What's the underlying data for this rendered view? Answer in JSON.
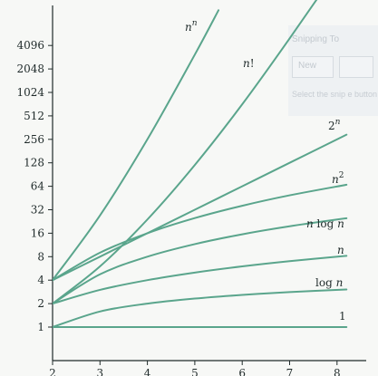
{
  "chart_data": {
    "type": "line",
    "title": "",
    "xlabel": "",
    "ylabel": "",
    "y_scale": "log2",
    "xlim": [
      2,
      8.2
    ],
    "ylim": [
      0.5,
      11000
    ],
    "x_ticks": [
      2,
      3,
      4,
      5,
      6,
      7,
      8
    ],
    "y_ticks": [
      1,
      2,
      4,
      8,
      16,
      32,
      64,
      128,
      256,
      512,
      1024,
      2048,
      4096
    ],
    "line_color": "#5aa58c",
    "grid": false,
    "series": [
      {
        "name": "n^n",
        "label_base": "n",
        "label_sup": "n",
        "label_extra": "",
        "x": [
          2,
          3,
          4,
          5,
          5.5
        ],
        "values": [
          4,
          27,
          256,
          3125,
          11600
        ]
      },
      {
        "name": "n!",
        "label_base": "n",
        "label_sup": "",
        "label_extra": "!",
        "x": [
          2,
          3,
          4,
          5,
          6,
          7,
          8.3
        ],
        "values": [
          2,
          6,
          24,
          120,
          720,
          5040,
          70000
        ]
      },
      {
        "name": "2^n",
        "label_base": "2",
        "label_sup": "n",
        "label_extra": "",
        "x": [
          2,
          3,
          4,
          5,
          6,
          7,
          8.2
        ],
        "values": [
          4,
          8,
          16,
          32,
          64,
          128,
          294
        ]
      },
      {
        "name": "n^2",
        "label_base": "n",
        "label_sup": "2",
        "label_extra": "",
        "x": [
          2,
          3,
          4,
          5,
          6,
          7,
          8.2
        ],
        "values": [
          4,
          9,
          16,
          25,
          36,
          49,
          67
        ]
      },
      {
        "name": "n log n",
        "label_base": "n log n",
        "label_sup": "",
        "label_extra": "",
        "x": [
          2,
          3,
          4,
          5,
          6,
          7,
          8.2
        ],
        "values": [
          2,
          4.75,
          8,
          11.6,
          15.5,
          19.65,
          24.9
        ]
      },
      {
        "name": "n",
        "label_base": "n",
        "label_sup": "",
        "label_extra": "",
        "x": [
          2,
          3,
          4,
          5,
          6,
          7,
          8.2
        ],
        "values": [
          2,
          3,
          4,
          5,
          6,
          7,
          8.2
        ]
      },
      {
        "name": "log n",
        "label_base": "log n",
        "label_sup": "",
        "label_extra": "",
        "x": [
          2,
          3,
          4,
          5,
          6,
          7,
          8.2
        ],
        "values": [
          1,
          1.585,
          2,
          2.32,
          2.585,
          2.81,
          3.04
        ]
      },
      {
        "name": "1",
        "label_base": "1",
        "label_sup": "",
        "label_extra": "",
        "x": [
          2,
          8.2
        ],
        "values": [
          1,
          1
        ]
      }
    ]
  },
  "background_panel": {
    "title": "Snipping To",
    "new_button": "New",
    "hint": "Select the snip e button"
  }
}
